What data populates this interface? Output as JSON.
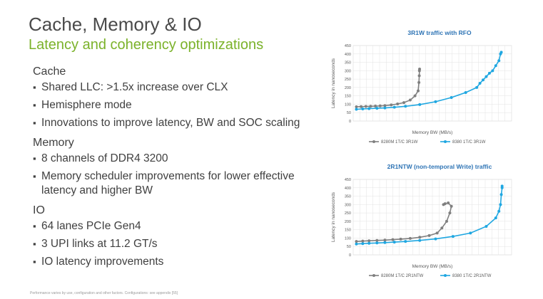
{
  "slide": {
    "title": "Cache, Memory & IO",
    "subtitle": "Latency and coherency optimizations",
    "footnote": "Performance varies by use, configuration and other factors. Configurations: see appendix [55]"
  },
  "sections": [
    {
      "heading": "Cache",
      "items": [
        "Shared LLC: >1.5x increase over CLX",
        "Hemisphere mode",
        "Innovations to improve latency, BW and SOC scaling"
      ]
    },
    {
      "heading": "Memory",
      "items": [
        "8 channels of DDR4 3200",
        "Memory scheduler improvements for lower effective latency and higher BW"
      ]
    },
    {
      "heading": "IO",
      "items": [
        "64 lanes PCIe Gen4",
        "3 UPI links at 11.2 GT/s",
        "IO latency improvements"
      ]
    }
  ],
  "chart_data": [
    {
      "type": "line",
      "title": "3R1W traffic with RFO",
      "xlabel": "Memory BW (MB/s)",
      "ylabel": "Latency in nanoseconds",
      "ylim": [
        0,
        450
      ],
      "yticks": [
        "0",
        "50",
        "100",
        "150",
        "200",
        "250",
        "300",
        "350",
        "400",
        "450"
      ],
      "grid": true,
      "legend_position": "bottom",
      "series": [
        {
          "name": "8280M 1T/C 3R1W",
          "color": "#7f7f7f",
          "points": [
            [
              0.02,
              85
            ],
            [
              0.05,
              86
            ],
            [
              0.08,
              87
            ],
            [
              0.11,
              88
            ],
            [
              0.14,
              89
            ],
            [
              0.17,
              90
            ],
            [
              0.2,
              92
            ],
            [
              0.24,
              96
            ],
            [
              0.28,
              102
            ],
            [
              0.32,
              110
            ],
            [
              0.36,
              125
            ],
            [
              0.39,
              150
            ],
            [
              0.41,
              180
            ],
            [
              0.415,
              230
            ],
            [
              0.417,
              270
            ],
            [
              0.418,
              300
            ],
            [
              0.419,
              310
            ]
          ]
        },
        {
          "name": "8380 1T/C 3R1W",
          "color": "#1fa7e1",
          "points": [
            [
              0.02,
              70
            ],
            [
              0.06,
              72
            ],
            [
              0.1,
              74
            ],
            [
              0.15,
              76
            ],
            [
              0.2,
              78
            ],
            [
              0.26,
              82
            ],
            [
              0.33,
              88
            ],
            [
              0.42,
              98
            ],
            [
              0.52,
              115
            ],
            [
              0.62,
              140
            ],
            [
              0.71,
              170
            ],
            [
              0.78,
              200
            ],
            [
              0.8,
              225
            ],
            [
              0.82,
              245
            ],
            [
              0.84,
              265
            ],
            [
              0.86,
              285
            ],
            [
              0.88,
              300
            ],
            [
              0.9,
              330
            ],
            [
              0.92,
              360
            ],
            [
              0.93,
              400
            ],
            [
              0.935,
              410
            ]
          ]
        }
      ]
    },
    {
      "type": "line",
      "title": "2R1NTW (non-temporal Write) traffic",
      "xlabel": "Memory BW (MB/s)",
      "ylabel": "Latency in nanoseconds",
      "ylim": [
        0,
        450
      ],
      "yticks": [
        "0",
        "50",
        "100",
        "150",
        "200",
        "250",
        "300",
        "350",
        "400",
        "450"
      ],
      "grid": true,
      "legend_position": "bottom",
      "series": [
        {
          "name": "8280M 1T/C 2R1NTW",
          "color": "#7f7f7f",
          "points": [
            [
              0.02,
              80
            ],
            [
              0.06,
              82
            ],
            [
              0.1,
              84
            ],
            [
              0.15,
              86
            ],
            [
              0.2,
              88
            ],
            [
              0.25,
              91
            ],
            [
              0.3,
              94
            ],
            [
              0.36,
              98
            ],
            [
              0.42,
              105
            ],
            [
              0.48,
              115
            ],
            [
              0.53,
              130
            ],
            [
              0.56,
              160
            ],
            [
              0.59,
              200
            ],
            [
              0.61,
              250
            ],
            [
              0.62,
              290
            ],
            [
              0.6,
              310
            ],
            [
              0.58,
              305
            ],
            [
              0.57,
              300
            ]
          ]
        },
        {
          "name": "8380 1T/C 2R1NTW",
          "color": "#1fa7e1",
          "points": [
            [
              0.02,
              65
            ],
            [
              0.06,
              67
            ],
            [
              0.1,
              69
            ],
            [
              0.15,
              71
            ],
            [
              0.2,
              73
            ],
            [
              0.26,
              76
            ],
            [
              0.33,
              80
            ],
            [
              0.42,
              86
            ],
            [
              0.52,
              95
            ],
            [
              0.63,
              110
            ],
            [
              0.74,
              130
            ],
            [
              0.84,
              170
            ],
            [
              0.9,
              220
            ],
            [
              0.92,
              260
            ],
            [
              0.93,
              300
            ],
            [
              0.935,
              360
            ],
            [
              0.94,
              400
            ],
            [
              0.94,
              410
            ]
          ]
        }
      ]
    }
  ]
}
